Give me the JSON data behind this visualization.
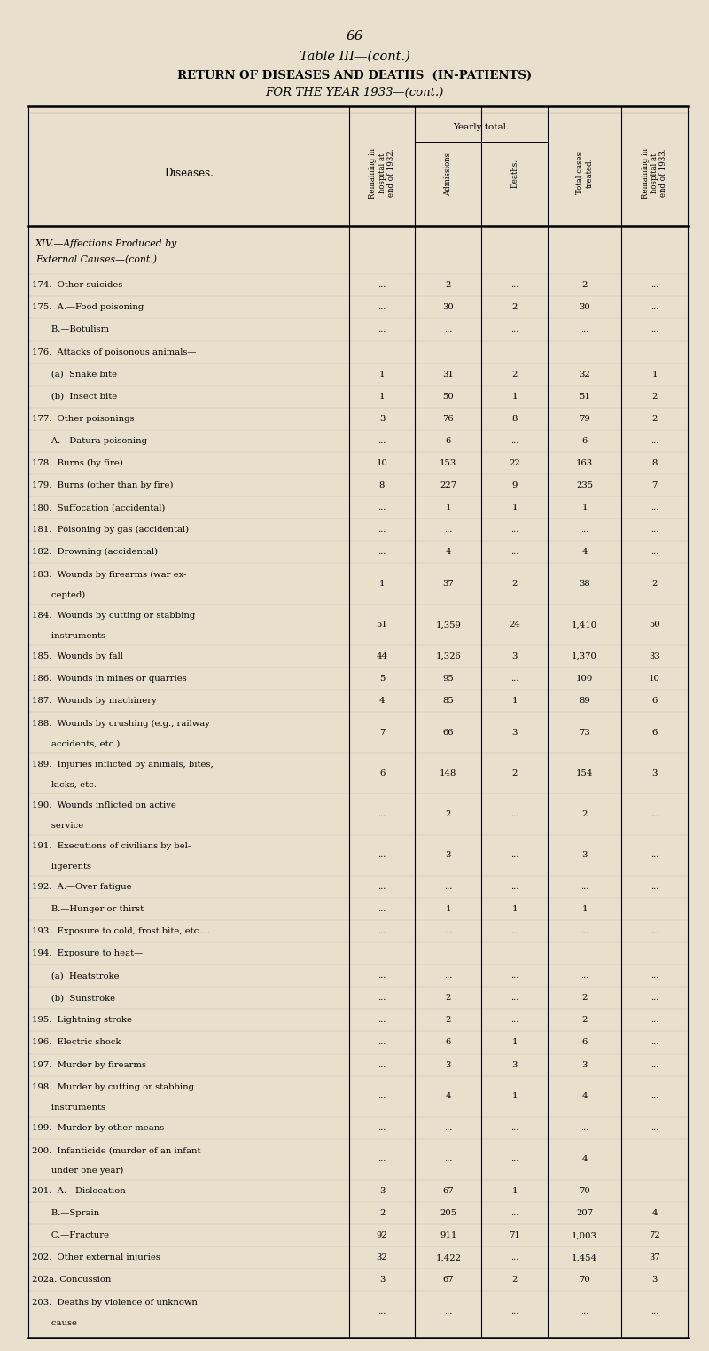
{
  "page_number": "66",
  "table_title": "Table III—(cont.)",
  "subtitle1": "RETURN OF DISEASES AND DEATHS  (IN-PATIENTS)",
  "subtitle2": "FOR THE YEAR 1933—(cont.)",
  "yearly_total_label": "Yearly total.",
  "bg_color": "#e8e0cc",
  "rows": [
    {
      "label": "XIV.—Affections Produced by\n    External Causes—(cont.)",
      "rem32": "",
      "adm": "",
      "deaths": "",
      "total": "",
      "rem33": "",
      "section": true
    },
    {
      "label": "174.  Other suicides",
      "rem32": "...",
      "adm": "2",
      "deaths": "...",
      "total": "2",
      "rem33": "..."
    },
    {
      "label": "175.  A.—Food poisoning",
      "rem32": "...",
      "adm": "30",
      "deaths": "2",
      "total": "30",
      "rem33": "..."
    },
    {
      "label": "       B.—Botulism",
      "rem32": "...",
      "adm": "...",
      "deaths": "...",
      "total": "...",
      "rem33": "..."
    },
    {
      "label": "176.  Attacks of poisonous animals—",
      "rem32": "",
      "adm": "",
      "deaths": "",
      "total": "",
      "rem33": ""
    },
    {
      "label": "       (a)  Snake bite",
      "rem32": "1",
      "adm": "31",
      "deaths": "2",
      "total": "32",
      "rem33": "1"
    },
    {
      "label": "       (b)  Insect bite",
      "rem32": "1",
      "adm": "50",
      "deaths": "1",
      "total": "51",
      "rem33": "2"
    },
    {
      "label": "177.  Other poisonings",
      "rem32": "3",
      "adm": "76",
      "deaths": "8",
      "total": "79",
      "rem33": "2"
    },
    {
      "label": "       A.—Datura poisoning",
      "rem32": "...",
      "adm": "6",
      "deaths": "...",
      "total": "6",
      "rem33": "..."
    },
    {
      "label": "178.  Burns (by fire)",
      "rem32": "10",
      "adm": "153",
      "deaths": "22",
      "total": "163",
      "rem33": "8"
    },
    {
      "label": "179.  Burns (other than by fire)",
      "rem32": "8",
      "adm": "227",
      "deaths": "9",
      "total": "235",
      "rem33": "7"
    },
    {
      "label": "180.  Suffocation (accidental)",
      "rem32": "...",
      "adm": "1",
      "deaths": "1",
      "total": "1",
      "rem33": "..."
    },
    {
      "label": "181.  Poisoning by gas (accidental)",
      "rem32": "...",
      "adm": "...",
      "deaths": "...",
      "total": "...",
      "rem33": "..."
    },
    {
      "label": "182.  Drowning (accidental)",
      "rem32": "...",
      "adm": "4",
      "deaths": "...",
      "total": "4",
      "rem33": "..."
    },
    {
      "label": "183.  Wounds by firearms (war ex-\n       cepted)",
      "rem32": "1",
      "adm": "37",
      "deaths": "2",
      "total": "38",
      "rem33": "2"
    },
    {
      "label": "184.  Wounds by cutting or stabbing\n       instruments",
      "rem32": "51",
      "adm": "1,359",
      "deaths": "24",
      "total": "1,410",
      "rem33": "50"
    },
    {
      "label": "185.  Wounds by fall",
      "rem32": "44",
      "adm": "1,326",
      "deaths": "3",
      "total": "1,370",
      "rem33": "33"
    },
    {
      "label": "186.  Wounds in mines or quarries",
      "rem32": "5",
      "adm": "95",
      "deaths": "...",
      "total": "100",
      "rem33": "10"
    },
    {
      "label": "187.  Wounds by machinery",
      "rem32": "4",
      "adm": "85",
      "deaths": "1",
      "total": "89",
      "rem33": "6"
    },
    {
      "label": "188.  Wounds by crushing (e.g., railway\n       accidents, etc.)",
      "rem32": "7",
      "adm": "66",
      "deaths": "3",
      "total": "73",
      "rem33": "6"
    },
    {
      "label": "189.  Injuries inflicted by animals, bites,\n       kicks, etc.",
      "rem32": "6",
      "adm": "148",
      "deaths": "2",
      "total": "154",
      "rem33": "3"
    },
    {
      "label": "190.  Wounds inflicted on active\n       service",
      "rem32": "...",
      "adm": "2",
      "deaths": "...",
      "total": "2",
      "rem33": "..."
    },
    {
      "label": "191.  Executions of civilians by bel-\n       ligerents",
      "rem32": "...",
      "adm": "3",
      "deaths": "...",
      "total": "3",
      "rem33": "..."
    },
    {
      "label": "192.  A.—Over fatigue",
      "rem32": "...",
      "adm": "...",
      "deaths": "...",
      "total": "...",
      "rem33": "..."
    },
    {
      "label": "       B.—Hunger or thirst",
      "rem32": "...",
      "adm": "1",
      "deaths": "1",
      "total": "1",
      "rem33": ""
    },
    {
      "label": "193.  Exposure to cold, frost bite, etc....",
      "rem32": "...",
      "adm": "...",
      "deaths": "...",
      "total": "...",
      "rem33": "..."
    },
    {
      "label": "194.  Exposure to heat—",
      "rem32": "",
      "adm": "",
      "deaths": "",
      "total": "",
      "rem33": ""
    },
    {
      "label": "       (a)  Heatstroke",
      "rem32": "...",
      "adm": "...",
      "deaths": "...",
      "total": "...",
      "rem33": "..."
    },
    {
      "label": "       (b)  Sunstroke",
      "rem32": "...",
      "adm": "2",
      "deaths": "...",
      "total": "2",
      "rem33": "..."
    },
    {
      "label": "195.  Lightning stroke",
      "rem32": "...",
      "adm": "2",
      "deaths": "...",
      "total": "2",
      "rem33": "..."
    },
    {
      "label": "196.  Electric shock",
      "rem32": "...",
      "adm": "6",
      "deaths": "1",
      "total": "6",
      "rem33": "..."
    },
    {
      "label": "197.  Murder by firearms",
      "rem32": "...",
      "adm": "3",
      "deaths": "3",
      "total": "3",
      "rem33": "..."
    },
    {
      "label": "198.  Murder by cutting or stabbing\n       instruments",
      "rem32": "...",
      "adm": "4",
      "deaths": "1",
      "total": "4",
      "rem33": "..."
    },
    {
      "label": "199.  Murder by other means",
      "rem32": "...",
      "adm": "...",
      "deaths": "...",
      "total": "...",
      "rem33": "..."
    },
    {
      "label": "200.  Infanticide (murder of an infant\n       under one year)",
      "rem32": "...",
      "adm": "...",
      "deaths": "...",
      "total": "4",
      "rem33": ""
    },
    {
      "label": "201.  A.—Dislocation",
      "rem32": "3",
      "adm": "67",
      "deaths": "1",
      "total": "70",
      "rem33": ""
    },
    {
      "label": "       B.—Sprain",
      "rem32": "2",
      "adm": "205",
      "deaths": "...",
      "total": "207",
      "rem33": "4"
    },
    {
      "label": "       C.—Fracture",
      "rem32": "92",
      "adm": "911",
      "deaths": "71",
      "total": "1,003",
      "rem33": "72"
    },
    {
      "label": "202.  Other external injuries",
      "rem32": "32",
      "adm": "1,422",
      "deaths": "...",
      "total": "1,454",
      "rem33": "37"
    },
    {
      "label": "202a. Concussion",
      "rem32": "3",
      "adm": "67",
      "deaths": "2",
      "total": "70",
      "rem33": "3"
    },
    {
      "label": "203.  Deaths by violence of unknown\n       cause",
      "rem32": "...",
      "adm": "...",
      "deaths": "...",
      "total": "...",
      "rem33": "..."
    }
  ]
}
